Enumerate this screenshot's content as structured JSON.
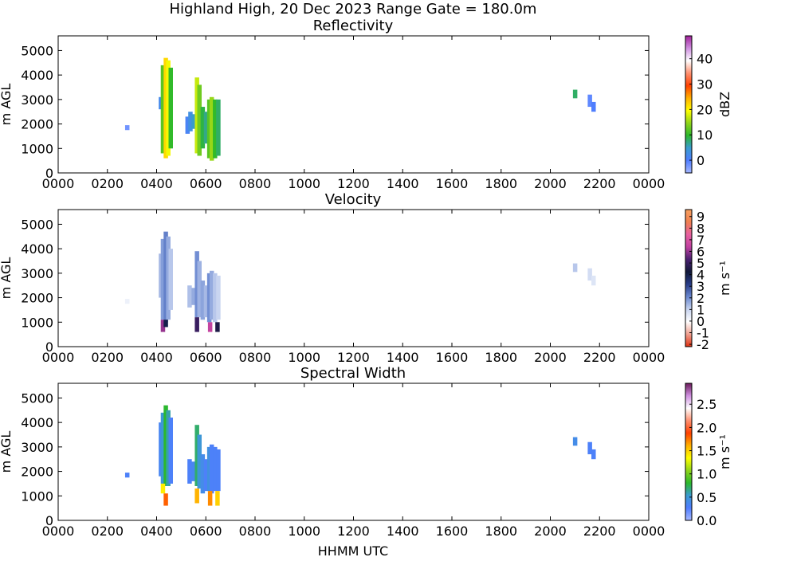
{
  "suptitle": "Highland High, 20 Dec 2023 Range Gate = 180.0m",
  "xlabel": "HHMM UTC",
  "chart_data": [
    {
      "type": "heatmap",
      "title": "Reflectivity",
      "ylabel": "m AGL",
      "xlim": [
        0,
        1440
      ],
      "ylim": [
        0,
        5600
      ],
      "x_tick_labels": [
        "0000",
        "0200",
        "0400",
        "0600",
        "0800",
        "1000",
        "1200",
        "1400",
        "1600",
        "1800",
        "2000",
        "2200",
        "0000"
      ],
      "y_ticks": [
        0,
        1000,
        2000,
        3000,
        4000,
        5000
      ],
      "colorbar": {
        "label": "dBZ",
        "range": [
          -5,
          49
        ],
        "ticks": [
          "0",
          "10",
          "20",
          "30",
          "40"
        ],
        "tick_values": [
          0,
          10,
          20,
          30,
          40
        ],
        "stops": [
          "#a6b8ff",
          "#4f7dff",
          "#3a9bd0",
          "#2bb82b",
          "#8fd41a",
          "#ffff00",
          "#ffb000",
          "#ff4000",
          "#ff9070",
          "#ffffff",
          "#d090e0",
          "#a0209a"
        ]
      },
      "cells": [
        {
          "x": 168,
          "y0": 1750,
          "y1": 1950,
          "v": -2
        },
        {
          "x": 250,
          "y0": 2600,
          "y1": 3100,
          "v": 2
        },
        {
          "x": 255,
          "y0": 800,
          "y1": 4400,
          "v": 12
        },
        {
          "x": 262,
          "y0": 600,
          "y1": 4700,
          "v": 22
        },
        {
          "x": 268,
          "y0": 700,
          "y1": 4600,
          "v": 19
        },
        {
          "x": 274,
          "y0": 1000,
          "y1": 4300,
          "v": 10
        },
        {
          "x": 315,
          "y0": 1600,
          "y1": 2300,
          "v": 1
        },
        {
          "x": 322,
          "y0": 1700,
          "y1": 2500,
          "v": 3
        },
        {
          "x": 330,
          "y0": 1800,
          "y1": 2400,
          "v": 5
        },
        {
          "x": 338,
          "y0": 800,
          "y1": 3900,
          "v": 17
        },
        {
          "x": 344,
          "y0": 700,
          "y1": 3600,
          "v": 13
        },
        {
          "x": 352,
          "y0": 1000,
          "y1": 2700,
          "v": 9
        },
        {
          "x": 360,
          "y0": 1200,
          "y1": 2500,
          "v": 7
        },
        {
          "x": 368,
          "y0": 600,
          "y1": 3000,
          "v": 12
        },
        {
          "x": 374,
          "y0": 500,
          "y1": 3100,
          "v": 15
        },
        {
          "x": 382,
          "y0": 600,
          "y1": 3000,
          "v": 10
        },
        {
          "x": 390,
          "y0": 700,
          "y1": 3000,
          "v": 8
        },
        {
          "x": 1260,
          "y0": 3050,
          "y1": 3400,
          "v": 8
        },
        {
          "x": 1296,
          "y0": 2700,
          "y1": 3200,
          "v": -1
        },
        {
          "x": 1305,
          "y0": 2500,
          "y1": 2900,
          "v": 0
        }
      ]
    },
    {
      "type": "heatmap",
      "title": "Velocity",
      "ylabel": "m s⁻¹",
      "ylim": [
        0,
        5600
      ],
      "x_tick_labels": [
        "0000",
        "0200",
        "0400",
        "0600",
        "0800",
        "1000",
        "1200",
        "1400",
        "1600",
        "1800",
        "2000",
        "2200",
        "0000"
      ],
      "y_ticks": [
        0,
        1000,
        2000,
        3000,
        4000,
        5000
      ],
      "y_axis_label": "m AGL",
      "colorbar": {
        "label": "m s⁻¹",
        "range": [
          -2.2,
          9.6
        ],
        "ticks": [
          "-2",
          "-1",
          "0",
          "1",
          "2",
          "3",
          "4",
          "5",
          "6",
          "7",
          "8",
          "9"
        ],
        "tick_values": [
          -2,
          -1,
          0,
          1,
          2,
          3,
          4,
          5,
          6,
          7,
          8,
          9
        ],
        "stops": [
          "#e03010",
          "#f0a090",
          "#ffffff",
          "#c8d4f0",
          "#6a88d0",
          "#283c88",
          "#101838",
          "#4a2070",
          "#c040a0",
          "#e860a0",
          "#f08050",
          "#f8a060"
        ]
      },
      "cells": [
        {
          "x": 168,
          "y0": 1750,
          "y1": 1950,
          "v": 0.3
        },
        {
          "x": 250,
          "y0": 2000,
          "y1": 3800,
          "v": 1.4
        },
        {
          "x": 255,
          "y0": 1100,
          "y1": 4400,
          "v": 1.8
        },
        {
          "x": 262,
          "y0": 1000,
          "y1": 4700,
          "v": 2.2
        },
        {
          "x": 268,
          "y0": 1100,
          "y1": 4500,
          "v": 1.6
        },
        {
          "x": 274,
          "y0": 1500,
          "y1": 4000,
          "v": 1.2
        },
        {
          "x": 255,
          "y0": 600,
          "y1": 1100,
          "v": 6
        },
        {
          "x": 262,
          "y0": 800,
          "y1": 1100,
          "v": 4
        },
        {
          "x": 320,
          "y0": 1600,
          "y1": 2500,
          "v": 1.3
        },
        {
          "x": 330,
          "y0": 1700,
          "y1": 2400,
          "v": 1.6
        },
        {
          "x": 338,
          "y0": 1200,
          "y1": 3900,
          "v": 2
        },
        {
          "x": 344,
          "y0": 1200,
          "y1": 3500,
          "v": 1.5
        },
        {
          "x": 338,
          "y0": 600,
          "y1": 1200,
          "v": 5
        },
        {
          "x": 352,
          "y0": 1100,
          "y1": 2700,
          "v": 1.7
        },
        {
          "x": 360,
          "y0": 1200,
          "y1": 2500,
          "v": 1.4
        },
        {
          "x": 368,
          "y0": 1000,
          "y1": 3000,
          "v": 2
        },
        {
          "x": 374,
          "y0": 1100,
          "y1": 3100,
          "v": 1.6
        },
        {
          "x": 382,
          "y0": 1000,
          "y1": 3000,
          "v": 1.2
        },
        {
          "x": 390,
          "y0": 1100,
          "y1": 2900,
          "v": 1.0
        },
        {
          "x": 370,
          "y0": 600,
          "y1": 1000,
          "v": 6.5
        },
        {
          "x": 388,
          "y0": 600,
          "y1": 1000,
          "v": 4.5
        },
        {
          "x": 1260,
          "y0": 3050,
          "y1": 3400,
          "v": 1.2
        },
        {
          "x": 1296,
          "y0": 2700,
          "y1": 3200,
          "v": 0.8
        },
        {
          "x": 1305,
          "y0": 2500,
          "y1": 2900,
          "v": 0.6
        }
      ]
    },
    {
      "type": "heatmap",
      "title": "Spectral Width",
      "ylabel": "m s⁻¹",
      "ylim": [
        0,
        5600
      ],
      "x_tick_labels": [
        "0000",
        "0200",
        "0400",
        "0600",
        "0800",
        "1000",
        "1200",
        "1400",
        "1600",
        "1800",
        "2000",
        "2200",
        "0000"
      ],
      "y_ticks": [
        0,
        1000,
        2000,
        3000,
        4000,
        5000
      ],
      "y_axis_label": "m AGL",
      "colorbar": {
        "label": "m s⁻¹",
        "range": [
          0,
          2.95
        ],
        "ticks": [
          "0.0",
          "0.5",
          "1.0",
          "1.5",
          "2.0",
          "2.5"
        ],
        "tick_values": [
          0,
          0.5,
          1.0,
          1.5,
          2.0,
          2.5
        ],
        "stops": [
          "#a6b8ff",
          "#4f7dff",
          "#3a9bd0",
          "#2bb82b",
          "#8fd41a",
          "#ffff00",
          "#ffb000",
          "#ff4000",
          "#ff9070",
          "#ffffff",
          "#d090e0",
          "#6a1a5a"
        ]
      },
      "cells": [
        {
          "x": 168,
          "y0": 1750,
          "y1": 1950,
          "v": 0.3
        },
        {
          "x": 250,
          "y0": 1800,
          "y1": 4000,
          "v": 0.35
        },
        {
          "x": 255,
          "y0": 1500,
          "y1": 4400,
          "v": 0.5
        },
        {
          "x": 262,
          "y0": 1400,
          "y1": 4700,
          "v": 0.8
        },
        {
          "x": 268,
          "y0": 1400,
          "y1": 4500,
          "v": 0.6
        },
        {
          "x": 274,
          "y0": 1500,
          "y1": 4200,
          "v": 0.3
        },
        {
          "x": 255,
          "y0": 1100,
          "y1": 1500,
          "v": 1.4
        },
        {
          "x": 262,
          "y0": 600,
          "y1": 1100,
          "v": 1.8
        },
        {
          "x": 320,
          "y0": 1500,
          "y1": 2500,
          "v": 0.3
        },
        {
          "x": 330,
          "y0": 1600,
          "y1": 2400,
          "v": 0.35
        },
        {
          "x": 338,
          "y0": 1400,
          "y1": 3900,
          "v": 0.7
        },
        {
          "x": 344,
          "y0": 1300,
          "y1": 3500,
          "v": 0.5
        },
        {
          "x": 338,
          "y0": 700,
          "y1": 1300,
          "v": 1.6
        },
        {
          "x": 352,
          "y0": 1100,
          "y1": 2700,
          "v": 0.4
        },
        {
          "x": 360,
          "y0": 1200,
          "y1": 2500,
          "v": 0.3
        },
        {
          "x": 368,
          "y0": 1200,
          "y1": 3000,
          "v": 0.45
        },
        {
          "x": 374,
          "y0": 1100,
          "y1": 3100,
          "v": 0.3
        },
        {
          "x": 382,
          "y0": 1200,
          "y1": 3000,
          "v": 0.3
        },
        {
          "x": 390,
          "y0": 1200,
          "y1": 2900,
          "v": 0.3
        },
        {
          "x": 370,
          "y0": 600,
          "y1": 1200,
          "v": 1.7
        },
        {
          "x": 388,
          "y0": 600,
          "y1": 1200,
          "v": 1.5
        },
        {
          "x": 1260,
          "y0": 3050,
          "y1": 3400,
          "v": 0.4
        },
        {
          "x": 1296,
          "y0": 2700,
          "y1": 3200,
          "v": 0.3
        },
        {
          "x": 1305,
          "y0": 2500,
          "y1": 2900,
          "v": 0.3
        }
      ]
    }
  ]
}
